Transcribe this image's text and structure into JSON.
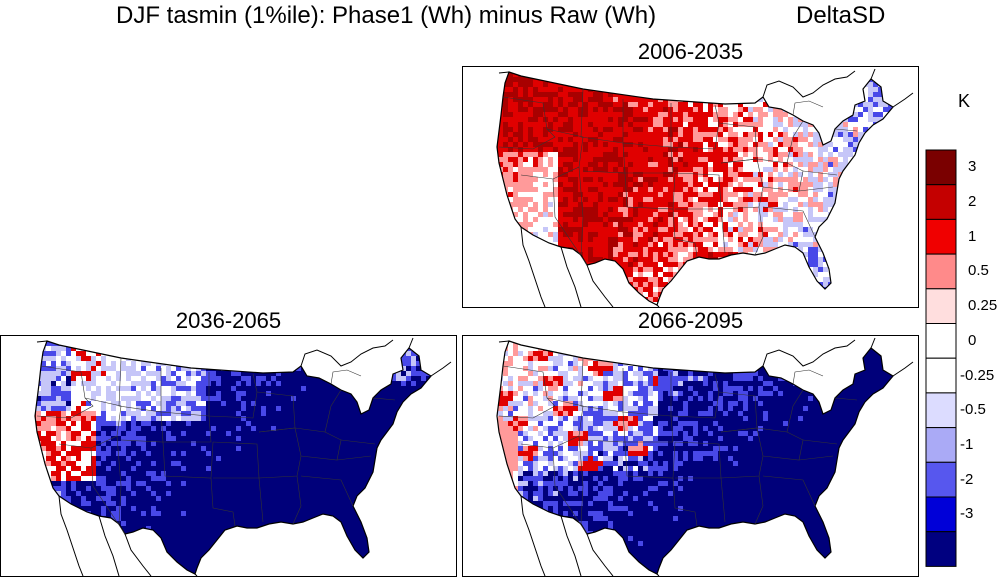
{
  "title": {
    "main": "DJF  tasmin (1%ile): Phase1 (Wh) minus Raw (Wh)",
    "method": "DeltaSD"
  },
  "panels": [
    {
      "id": "p1",
      "title": "2006-2035",
      "pattern": "warm_west_cool_east"
    },
    {
      "id": "p2",
      "title": "2036-2065",
      "pattern": "cool_everywhere"
    },
    {
      "id": "p3",
      "title": "2066-2095",
      "pattern": "cool_with_west_warm_streaks"
    }
  ],
  "legend": {
    "unit": "K",
    "colors": [
      "#7a0000",
      "#c40000",
      "#f00000",
      "#ff8a8a",
      "#ffdede",
      "#ffffff",
      "#ffffff",
      "#dcdcff",
      "#aaaaf6",
      "#5757ee",
      "#0000d8",
      "#000080"
    ],
    "labels": [
      "3",
      "2",
      "1",
      "0.5",
      "0.25",
      "0",
      "-0.25",
      "-0.5",
      "-1",
      "-2",
      "-3"
    ]
  },
  "colors": {
    "deep_red": "#a80000",
    "red": "#e00000",
    "pink": "#ff9a9a",
    "white": "#ffffff",
    "light_blue": "#c6c6f8",
    "blue": "#4848e8",
    "navy": "#00007a"
  }
}
